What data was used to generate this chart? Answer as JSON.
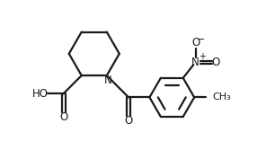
{
  "background_color": "#ffffff",
  "line_color": "#1a1a1a",
  "line_width": 1.6,
  "figsize": [
    3.06,
    1.57
  ],
  "dpi": 100,
  "xlim": [
    0,
    9.5
  ],
  "ylim": [
    0,
    5.0
  ]
}
